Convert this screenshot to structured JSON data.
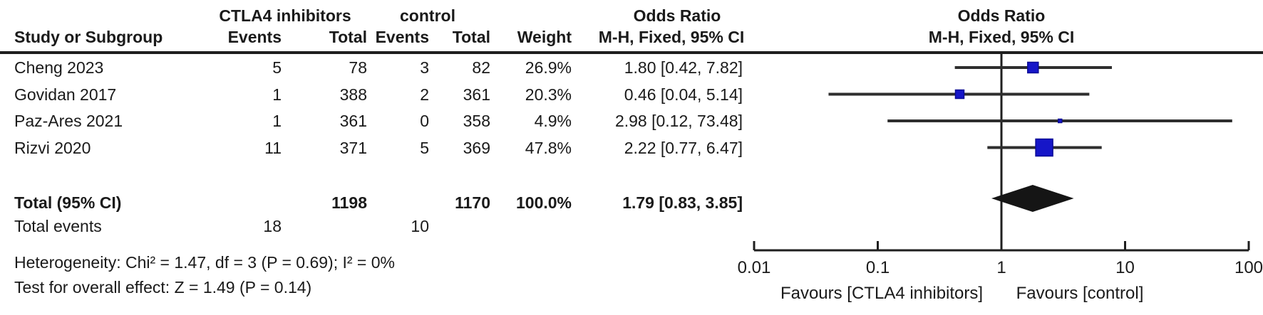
{
  "figure": {
    "type_label": "forest-plot",
    "effect_measure": "Odds Ratio"
  },
  "table": {
    "group_headers": {
      "experimental": "CTLA4 inhibitors",
      "control": "control",
      "odds_ratio_left": "Odds Ratio",
      "odds_ratio_right": "Odds Ratio"
    },
    "column_headers": {
      "study": "Study or Subgroup",
      "events": "Events",
      "total": "Total",
      "events_control": "Events",
      "total_control": "Total",
      "weight": "Weight",
      "ci": "M-H, Fixed, 95% CI",
      "ci_right": "M-H, Fixed, 95% CI"
    },
    "rows": [
      {
        "study": "Cheng 2023",
        "events_exp": "5",
        "total_exp": "78",
        "events_ctrl": "3",
        "total_ctrl": "82",
        "weight": "26.9%",
        "ci_text": "1.80 [0.42, 7.82]"
      },
      {
        "study": "Govidan 2017",
        "events_exp": "1",
        "total_exp": "388",
        "events_ctrl": "2",
        "total_ctrl": "361",
        "weight": "20.3%",
        "ci_text": "0.46 [0.04, 5.14]"
      },
      {
        "study": "Paz-Ares 2021",
        "events_exp": "1",
        "total_exp": "361",
        "events_ctrl": "0",
        "total_ctrl": "358",
        "weight": "4.9%",
        "ci_text": "2.98 [0.12, 73.48]"
      },
      {
        "study": "Rizvi 2020",
        "events_exp": "11",
        "total_exp": "371",
        "events_ctrl": "5",
        "total_ctrl": "369",
        "weight": "47.8%",
        "ci_text": "2.22 [0.77, 6.47]"
      }
    ],
    "total_row": {
      "label": "Total (95% CI)",
      "total_exp": "1198",
      "total_ctrl": "1170",
      "weight": "100.0%",
      "ci_text": "1.79 [0.83, 3.85]"
    },
    "total_events": {
      "label": "Total events",
      "experimental": "18",
      "control": "10"
    },
    "heterogeneity": "Heterogeneity: Chi² = 1.47, df = 3 (P = 0.69); I² = 0%",
    "overall_effect": "Test for overall effect: Z = 1.49 (P = 0.14)"
  },
  "chart_data": {
    "type": "scatter",
    "subtype": "forest",
    "title": "Odds Ratio, M-H, Fixed, 95% CI",
    "x_scale": "log10",
    "xlim": [
      0.01,
      100
    ],
    "x_ticks": [
      0.01,
      0.1,
      1,
      10,
      100
    ],
    "x_tick_labels": [
      "0.01",
      "0.1",
      "1",
      "10",
      "100"
    ],
    "null_line": 1,
    "studies": [
      {
        "name": "Cheng 2023",
        "or": 1.8,
        "ci_low": 0.42,
        "ci_high": 7.82,
        "weight_pct": 26.9
      },
      {
        "name": "Govidan 2017",
        "or": 0.46,
        "ci_low": 0.04,
        "ci_high": 5.14,
        "weight_pct": 20.3
      },
      {
        "name": "Paz-Ares 2021",
        "or": 2.98,
        "ci_low": 0.12,
        "ci_high": 73.48,
        "weight_pct": 4.9
      },
      {
        "name": "Rizvi 2020",
        "or": 2.22,
        "ci_low": 0.77,
        "ci_high": 6.47,
        "weight_pct": 47.8
      }
    ],
    "total": {
      "label": "Total (95% CI)",
      "or": 1.79,
      "ci_low": 0.83,
      "ci_high": 3.85,
      "weight_pct": 100.0
    },
    "favours_left": "Favours [CTLA4 inhibitors]",
    "favours_right": "Favours [control]",
    "marker_color": "#1616c8",
    "marker_border_color": "#0b0b96",
    "diamond_color": "#151515",
    "ci_line_color": "#2e2e2e",
    "axis_color": "#1f1f1f"
  }
}
